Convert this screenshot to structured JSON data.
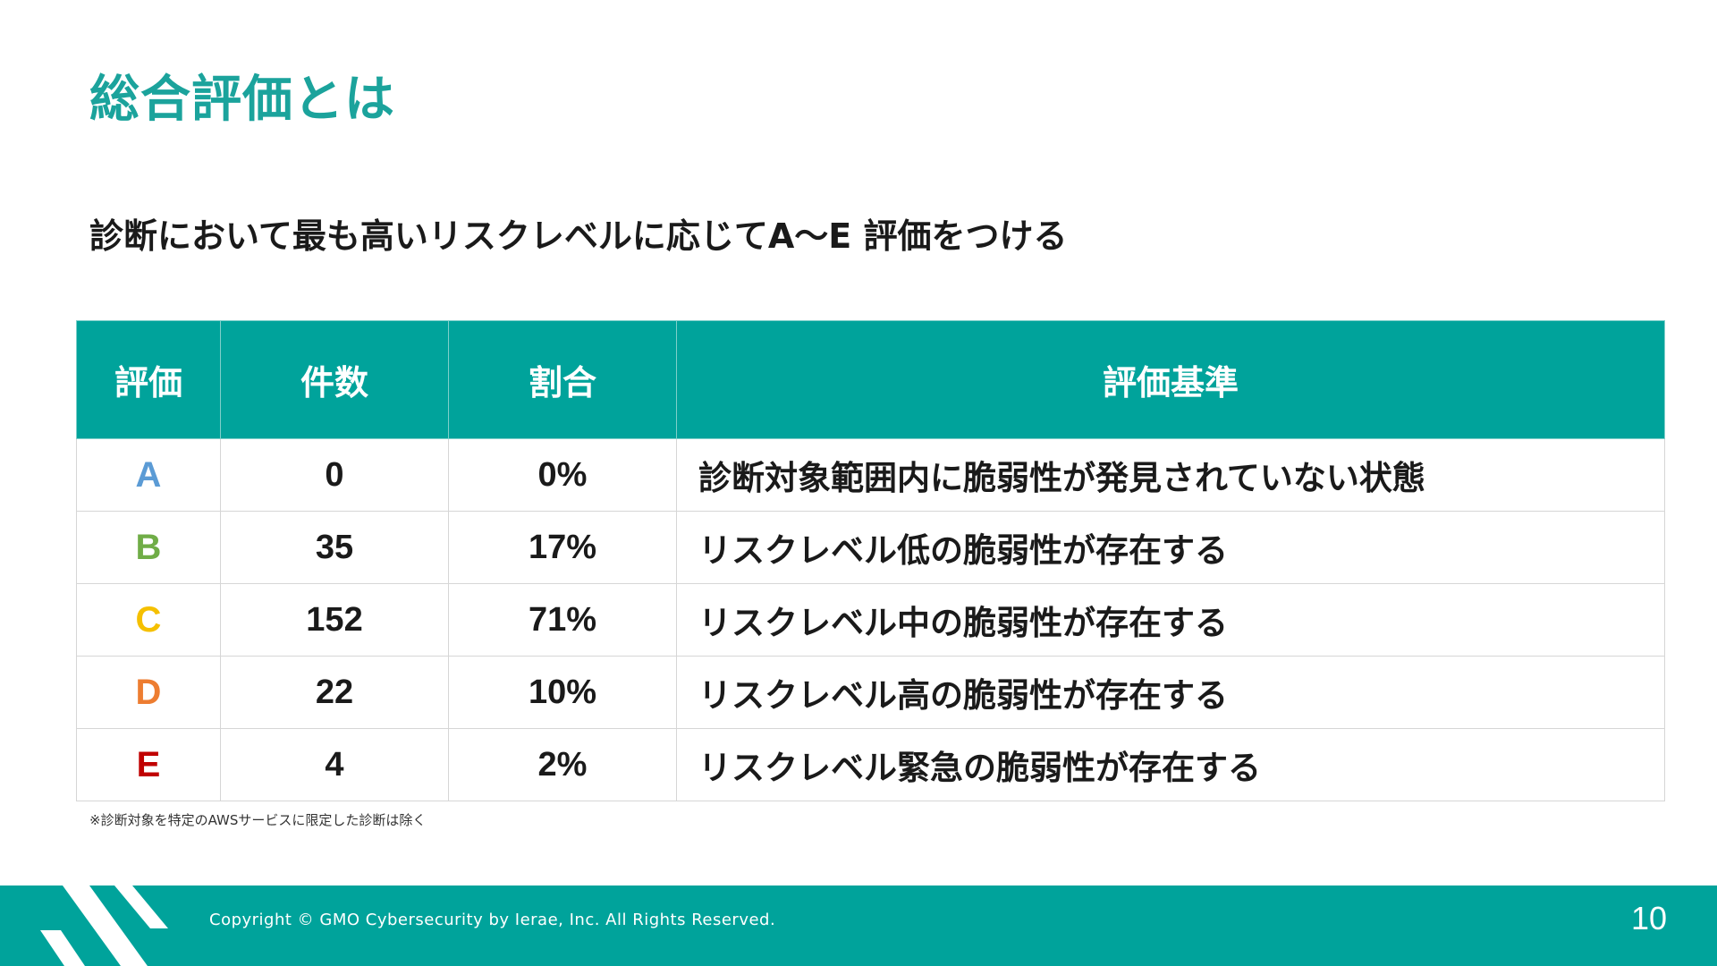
{
  "slide": {
    "title": "総合評価とは",
    "subtitle": "診断において最も高いリスクレベルに応じてA〜E 評価をつける",
    "note": "※診断対象を特定のAWSサービスに限定した診断は除く",
    "page_number": "10"
  },
  "table": {
    "headers": [
      "評価",
      "件数",
      "割合",
      "評価基準"
    ],
    "rows": [
      {
        "grade": "A",
        "count": "0",
        "ratio": "0%",
        "criteria": "診断対象範囲内に脆弱性が発見されていない状態",
        "color": "#5b9bd5"
      },
      {
        "grade": "B",
        "count": "35",
        "ratio": "17%",
        "criteria": "リスクレベル低の脆弱性が存在する",
        "color": "#70ad47"
      },
      {
        "grade": "C",
        "count": "152",
        "ratio": "71%",
        "criteria": "リスクレベル中の脆弱性が存在する",
        "color": "#f5c000"
      },
      {
        "grade": "D",
        "count": "22",
        "ratio": "10%",
        "criteria": "リスクレベル高の脆弱性が存在する",
        "color": "#ed7d31"
      },
      {
        "grade": "E",
        "count": "4",
        "ratio": "2%",
        "criteria": "リスクレベル緊急の脆弱性が存在する",
        "color": "#c00000"
      }
    ]
  },
  "footer": {
    "copyright": "Copyright © GMO Cybersecurity by Ierae, Inc. All Rights Reserved.",
    "background_color": "#00a39b"
  },
  "colors": {
    "accent": "#1ba39c",
    "header_bg": "#00a39b"
  }
}
